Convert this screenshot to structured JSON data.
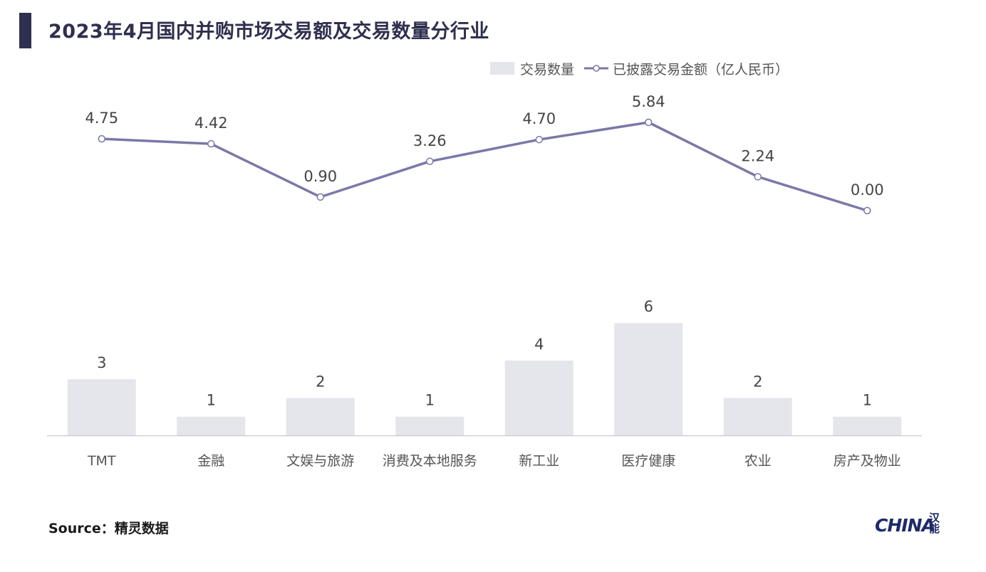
{
  "header": {
    "title": "2023年4月国内并购市场交易额及交易数量分行业"
  },
  "legend": {
    "bar_label": "交易数量",
    "line_label": "已披露交易金额（亿人民币）"
  },
  "source": {
    "text": "Source：精灵数据"
  },
  "logo": {
    "text": "CHINA",
    "mark": "汉能"
  },
  "colors": {
    "bar": "#e5e5ec",
    "line": "#7a78a8",
    "axis": "#d0d0d0",
    "title": "#2f2f4f"
  },
  "chart_data": {
    "type": "bar+line",
    "categories": [
      "TMT",
      "金融",
      "文娱与旅游",
      "消费及本地服务",
      "新工业",
      "医疗健康",
      "农业",
      "房产及物业"
    ],
    "series": [
      {
        "name": "交易数量",
        "type": "bar",
        "values": [
          3,
          1,
          2,
          1,
          4,
          6,
          2,
          1
        ],
        "labels": [
          "3",
          "1",
          "2",
          "1",
          "4",
          "6",
          "2",
          "1"
        ]
      },
      {
        "name": "已披露交易金额（亿人民币）",
        "type": "line",
        "values": [
          4.75,
          4.42,
          0.9,
          3.26,
          4.7,
          5.84,
          2.24,
          0.0
        ],
        "labels": [
          "4.75",
          "4.42",
          "0.90",
          "3.26",
          "4.70",
          "5.84",
          "2.24",
          "0.00"
        ]
      }
    ],
    "legend_position": "top-right",
    "grid": false
  }
}
